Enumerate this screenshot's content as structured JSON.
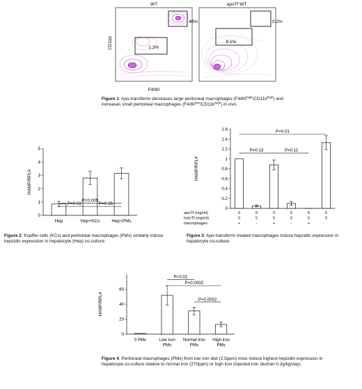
{
  "figure1": {
    "panels": [
      {
        "title": "WT",
        "gate_upper": "40%",
        "gate_lower": "1.3%"
      },
      {
        "title": "apoTf WT",
        "gate_upper": "0.2%",
        "gate_lower": "8.1%"
      }
    ],
    "ylabel": "CD11b",
    "xlabel": "F4/80",
    "caption": {
      "label": "Figure 1",
      "t1": ": Apo-transferrin decreases large peritoneal macrophages (F4/80",
      "s1": "high",
      "t2": "/CD11b",
      "s2": "high",
      "t3": ") and",
      "t4": "increases small peritoneal macrophages (F4/80",
      "s3": "low",
      "t5": "/CD11b",
      "s4": "high",
      "t6": ") ",
      "t7": "in vivo",
      "t8": "."
    }
  },
  "chart_data": [
    {
      "type": "bar",
      "id": "figure2",
      "categories": [
        "Hep",
        "Hep+KCs",
        "Hep+PMs"
      ],
      "values": [
        0.85,
        2.8,
        3.15
      ],
      "errors": [
        0.2,
        0.5,
        0.4
      ],
      "ylabel": "HAMP/RPL4",
      "ylim": [
        0,
        5
      ],
      "yticks": [
        "0",
        "1",
        "2",
        "3",
        "4",
        "5"
      ],
      "pvalues": [
        {
          "label": "P=0.005",
          "from": 0,
          "to": 2,
          "level": 0.9
        },
        {
          "label": "P=0.02",
          "from": 0,
          "to": 1,
          "level": 0.67
        },
        {
          "label": "P=0.35",
          "from": 1,
          "to": 2,
          "level": 0.67
        }
      ]
    },
    {
      "type": "bar",
      "id": "figure3",
      "categories": [
        "",
        "",
        "",
        "",
        "",
        ""
      ],
      "values": [
        1.0,
        0.05,
        0.88,
        0.1,
        0.0,
        1.33
      ],
      "errors": [
        0.0,
        0.02,
        0.1,
        0.04,
        0.0,
        0.14
      ],
      "ylabel": "HAMP/RPL4",
      "ylim": [
        0,
        1.6
      ],
      "yticks": [
        "0",
        "0.2",
        "0.4",
        "0.6",
        "0.8",
        "1",
        "1.2",
        "1.4",
        "1.6"
      ],
      "table": [
        {
          "label": "apoTf (mg/ml)",
          "cells": [
            "0",
            "0",
            "0",
            "5",
            "5",
            "5"
          ]
        },
        {
          "label": "holoTf (mg/ml)",
          "cells": [
            "0",
            "5",
            "5",
            "0",
            "0",
            "0"
          ]
        },
        {
          "label": "macrophages",
          "cells": [
            "+",
            "-",
            "+",
            "-",
            "+",
            ""
          ]
        }
      ],
      "pvalues": [
        {
          "label": "P=0.01",
          "from": 0,
          "to": 5,
          "level": 1.5
        },
        {
          "label": "P=0.13",
          "from": 0,
          "to": 2,
          "level": 1.12
        },
        {
          "label": "P=0.11",
          "from": 2,
          "to": 4,
          "level": 1.12
        }
      ]
    },
    {
      "type": "bar",
      "id": "figure4",
      "categories": [
        "0 PMs",
        "Low iron PMs",
        "Normal iron PMs",
        "High iron PMs"
      ],
      "category_lines": [
        [
          "0 PMs"
        ],
        [
          "Low iron",
          "PMs"
        ],
        [
          "Normal iron",
          "PMs"
        ],
        [
          "High iron",
          "PMs"
        ]
      ],
      "values": [
        1.0,
        52,
        31,
        13
      ],
      "errors": [
        0.0,
        13,
        5,
        3
      ],
      "ylabel": "HAMP/RPL4",
      "ylim": [
        0,
        80
      ],
      "yticks": [
        "0",
        "20",
        "40",
        "60"
      ],
      "pvalues": [
        {
          "label": "P=0.01",
          "from": 1,
          "to": 2,
          "level": 73
        },
        {
          "label": "P=0.0002",
          "from": 1,
          "to": 3,
          "level": 65
        },
        {
          "label": "P=0.0002",
          "from": 2,
          "to": 3,
          "level": 43
        }
      ]
    }
  ],
  "figure2_caption": {
    "label": "Figure 2",
    "text": ": Kupffer cells (KCs) and peritoneal macrophages (PMs) similarly induce hepcidin expression in hepatocyte (Hep) co-culture."
  },
  "figure3_caption": {
    "label": "Figure 3",
    "text": ": Apo-transferrin treated macrophages induce hepcidin expression in hepatocyte co-culture."
  },
  "figure4_caption": {
    "label": "Figure 4",
    "text": ": Peritoneal macrophages (PMs) from low iron diet (2.5ppm) mice induce highest hepcidin expression in hepatocyte co-culture relative to normal iron (270ppm) or high iron (injected iron dextran 0.2g/kg/day)."
  },
  "colors": {
    "contour": "#b03cc4",
    "contour_light": "#d98fe0",
    "ink": "#111111"
  }
}
